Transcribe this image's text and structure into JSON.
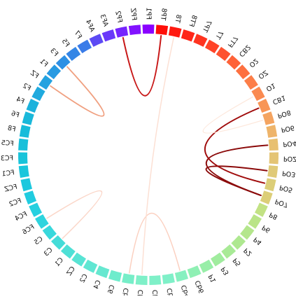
{
  "diagram": {
    "type": "chord",
    "nodes": [
      {
        "label": "Cb3",
        "color": "#7ff0c8"
      },
      {
        "label": "Cb1",
        "color": "#7ff0c8"
      },
      {
        "label": "Cb2",
        "color": "#7ff0c8"
      },
      {
        "label": "Cb4",
        "color": "#86f0c0"
      },
      {
        "label": "Cb6",
        "color": "#8ff0b4"
      },
      {
        "label": "P1",
        "color": "#98eea8"
      },
      {
        "label": "P3",
        "color": "#a0ec9e"
      },
      {
        "label": "P5",
        "color": "#a8ea96"
      },
      {
        "label": "P2",
        "color": "#aee890"
      },
      {
        "label": "P4",
        "color": "#b4e68c"
      },
      {
        "label": "P6",
        "color": "#bae488"
      },
      {
        "label": "P8",
        "color": "#c2e284"
      },
      {
        "label": "PO7",
        "color": "#dcce78"
      },
      {
        "label": "PO5",
        "color": "#dcce78"
      },
      {
        "label": "PO3",
        "color": "#e0ca78"
      },
      {
        "label": "POZ",
        "color": "#e4c474"
      },
      {
        "label": "PO4",
        "color": "#e8c070"
      },
      {
        "label": "PO6",
        "color": "#eeb46a"
      },
      {
        "label": "PO8",
        "color": "#f4a460"
      },
      {
        "label": "CB1",
        "color": "#f89656"
      },
      {
        "label": "O1",
        "color": "#fa8a50"
      },
      {
        "label": "OZ",
        "color": "#fc7e48"
      },
      {
        "label": "O2",
        "color": "#fd7040"
      },
      {
        "label": "CB2",
        "color": "#fe6238"
      },
      {
        "label": "FT7",
        "color": "#fe5230"
      },
      {
        "label": "T7",
        "color": "#ff4428"
      },
      {
        "label": "TP7",
        "color": "#ff3420"
      },
      {
        "label": "FT8",
        "color": "#ff2618"
      },
      {
        "label": "T8",
        "color": "#ff1a10"
      },
      {
        "label": "TP8",
        "color": "#ff0e08"
      },
      {
        "label": "FP1",
        "color": "#8a00ff"
      },
      {
        "label": "FPZ",
        "color": "#8212ff"
      },
      {
        "label": "FP2",
        "color": "#7624fe"
      },
      {
        "label": "AF3",
        "color": "#6a38fa"
      },
      {
        "label": "AF4",
        "color": "#5c4af4"
      },
      {
        "label": "F7",
        "color": "#3a7ce8"
      },
      {
        "label": "F5",
        "color": "#3486e6"
      },
      {
        "label": "F3",
        "color": "#2e90e4"
      },
      {
        "label": "F1",
        "color": "#289ae2"
      },
      {
        "label": "FZ",
        "color": "#24a2e0"
      },
      {
        "label": "F2",
        "color": "#20aade"
      },
      {
        "label": "F4",
        "color": "#1cb2dc"
      },
      {
        "label": "F6",
        "color": "#1ab8da"
      },
      {
        "label": "F8",
        "color": "#18bcda"
      },
      {
        "label": "FC5",
        "color": "#18c0da"
      },
      {
        "label": "FC3",
        "color": "#18c4da"
      },
      {
        "label": "FC1",
        "color": "#1ac6dc"
      },
      {
        "label": "FCZ",
        "color": "#1cc8de"
      },
      {
        "label": "FC2",
        "color": "#20cce0"
      },
      {
        "label": "FC4",
        "color": "#26d0e0"
      },
      {
        "label": "FC6",
        "color": "#2ed4de"
      },
      {
        "label": "C5",
        "color": "#38d8dc"
      },
      {
        "label": "C3",
        "color": "#44dcd8"
      },
      {
        "label": "C1",
        "color": "#4ee0d6"
      },
      {
        "label": "CZ",
        "color": "#58e4d4"
      },
      {
        "label": "C2",
        "color": "#60e6d2"
      },
      {
        "label": "C4",
        "color": "#66e8d0"
      },
      {
        "label": "C6",
        "color": "#6eeccc"
      },
      {
        "label": "Cb5",
        "color": "#76eec8"
      }
    ],
    "links": [
      {
        "from": "PO7",
        "to": "PO3",
        "color": "#8b0a0a",
        "weight": 2
      },
      {
        "from": "PO7",
        "to": "PO4",
        "color": "#8b0a0a",
        "weight": 2
      },
      {
        "from": "PO5",
        "to": "CB1",
        "color": "#a00c0c",
        "weight": 2
      },
      {
        "from": "FP2",
        "to": "TP8",
        "color": "#c81818",
        "weight": 2
      },
      {
        "from": "F3",
        "to": "FZ",
        "color": "#f0a080",
        "weight": 1.8
      },
      {
        "from": "FC6",
        "to": "C3",
        "color": "#fbd6c8",
        "weight": 1.5
      },
      {
        "from": "Cb5",
        "to": "Cb4",
        "color": "#fbd0c0",
        "weight": 1.5
      },
      {
        "from": "Cb3",
        "to": "T8",
        "color": "#fce0d4",
        "weight": 1.5
      },
      {
        "from": "O1",
        "to": "PO8",
        "color": "#fde8dc",
        "weight": 1.3
      }
    ]
  }
}
